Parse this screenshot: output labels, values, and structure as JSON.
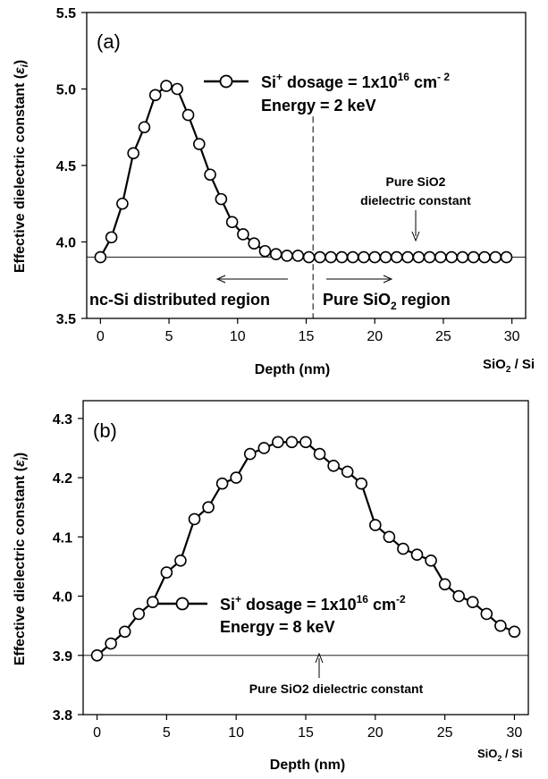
{
  "chart_data": [
    {
      "type": "line",
      "panel_label": "(a)",
      "xlabel": "Depth (nm)",
      "ylabel": "Effective dielectric constant (εi)",
      "xlim": [
        -1,
        31
      ],
      "ylim": [
        3.5,
        5.5
      ],
      "xticks": [
        "0",
        "5",
        "10",
        "15",
        "20",
        "25",
        "30"
      ],
      "yticks": [
        "3.5",
        "4.0",
        "4.5",
        "5.0",
        "5.5"
      ],
      "x_end_label": "SiO2 / Si",
      "legend": {
        "line1_pre": "Si",
        "line1_sup": "+",
        "line1_mid": " dosage = 1x10",
        "line1_exp": "16",
        "line1_post": " cm",
        "line1_unit_exp": "- 2",
        "line2": "Energy = 2 keV"
      },
      "reference": {
        "value": 3.9,
        "label_line1": "Pure SiO2",
        "label_line2": "dielectric constant"
      },
      "divider_x": 15.5,
      "region_left": "nc-Si distributed region",
      "region_right_pre": "Pure SiO",
      "region_right_sub": "2",
      "region_right_post": " region",
      "series": [
        {
          "x": [
            0,
            0.8,
            1.6,
            2.4,
            3.2,
            4.0,
            4.8,
            5.6,
            6.4,
            7.2,
            8.0,
            8.8,
            9.6,
            10.4,
            11.2,
            12.0,
            12.8,
            13.6,
            14.4,
            15.2,
            16.0,
            16.8,
            17.6,
            18.4,
            19.2,
            20.0,
            20.8,
            21.6,
            22.4,
            23.2,
            24.0,
            24.8,
            25.6,
            26.4,
            27.2,
            28.0,
            28.8,
            29.6
          ],
          "y": [
            3.9,
            4.03,
            4.25,
            4.58,
            4.75,
            4.96,
            5.02,
            5.0,
            4.83,
            4.64,
            4.44,
            4.28,
            4.13,
            4.05,
            3.99,
            3.94,
            3.92,
            3.91,
            3.91,
            3.9,
            3.9,
            3.9,
            3.9,
            3.9,
            3.9,
            3.9,
            3.9,
            3.9,
            3.9,
            3.9,
            3.9,
            3.9,
            3.9,
            3.9,
            3.9,
            3.9,
            3.9,
            3.9
          ]
        }
      ]
    },
    {
      "type": "line",
      "panel_label": "(b)",
      "xlabel": "Depth (nm)",
      "ylabel": "Effective dielectric constant (εi)",
      "xlim": [
        -1,
        31
      ],
      "ylim": [
        3.8,
        4.33
      ],
      "xticks": [
        "0",
        "5",
        "10",
        "15",
        "20",
        "25",
        "30"
      ],
      "yticks": [
        "3.8",
        "3.9",
        "4.0",
        "4.1",
        "4.2",
        "4.3"
      ],
      "x_end_label": "SiO2 / Si",
      "legend": {
        "line1_pre": "Si",
        "line1_sup": "+",
        "line1_mid": " dosage = 1x10",
        "line1_exp": "16",
        "line1_post": " cm",
        "line1_unit_exp": "-2",
        "line2": "Energy = 8 keV"
      },
      "reference": {
        "value": 3.9,
        "label_line1": "Pure SiO2 dielectric constant"
      },
      "series": [
        {
          "x": [
            0,
            1,
            2,
            3,
            4,
            5,
            6,
            7,
            8,
            9,
            10,
            11,
            12,
            13,
            14,
            15,
            16,
            17,
            18,
            19,
            20,
            21,
            22,
            23,
            24,
            25,
            26,
            27,
            28,
            29,
            30
          ],
          "y": [
            3.9,
            3.92,
            3.94,
            3.97,
            3.99,
            4.04,
            4.06,
            4.13,
            4.15,
            4.19,
            4.2,
            4.24,
            4.25,
            4.26,
            4.26,
            4.26,
            4.24,
            4.22,
            4.21,
            4.19,
            4.12,
            4.1,
            4.08,
            4.07,
            4.06,
            4.02,
            4.0,
            3.99,
            3.97,
            3.95,
            3.94
          ]
        }
      ]
    }
  ]
}
